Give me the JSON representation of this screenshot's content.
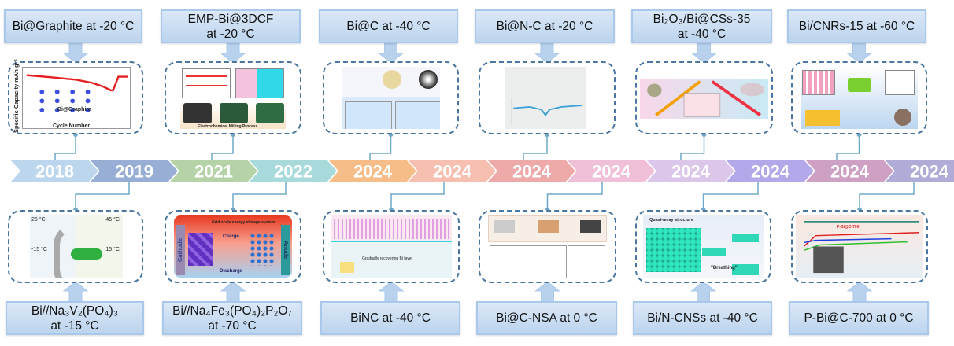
{
  "timeline": {
    "segments": [
      {
        "year": "2018",
        "color": "#bcd6ee"
      },
      {
        "year": "2019",
        "color": "#98aed4"
      },
      {
        "year": "2021",
        "color": "#b5d3a6"
      },
      {
        "year": "2022",
        "color": "#a8dadc"
      },
      {
        "year": "2024",
        "color": "#f6bd88"
      },
      {
        "year": "2024",
        "color": "#f6bfb0"
      },
      {
        "year": "2024",
        "color": "#eea9a9"
      },
      {
        "year": "2024",
        "color": "#f0c0d8"
      },
      {
        "year": "2024",
        "color": "#dcc6ea"
      },
      {
        "year": "2024",
        "color": "#b3a9ea"
      },
      {
        "year": "2024",
        "color": "#cda0c4"
      },
      {
        "year": "2024",
        "color": "#b0acd8"
      }
    ]
  },
  "top": [
    {
      "line1": "Bi@Graphite at -20 °C",
      "line2": ""
    },
    {
      "line1": "EMP-Bi@3DCF",
      "line2": "at -20 °C"
    },
    {
      "line1": "Bi@C at -40 °C",
      "line2": ""
    },
    {
      "line1": "Bi@N-C at -20 °C",
      "line2": ""
    },
    {
      "line1": "Bi₂O₃/Bi@CSs-35",
      "line2": "at -40 °C"
    },
    {
      "line1": "Bi/CNRs-15 at -60 °C",
      "line2": ""
    }
  ],
  "bottom": [
    {
      "line1": "Bi//Na₃V₂(PO₄)₃",
      "line2": "at -15 °C"
    },
    {
      "line1": "Bi//Na₄Fe₃(PO₄)₂P₂O₇",
      "line2": "at -70 °C"
    },
    {
      "line1": "BiNC at -40 °C",
      "line2": ""
    },
    {
      "line1": "Bi@C-NSA at 0 °C",
      "line2": ""
    },
    {
      "line1": "Bi/N-CNSs at -40 °C",
      "line2": ""
    },
    {
      "line1": "P-Bi@C-700 at 0 °C",
      "line2": ""
    }
  ],
  "figure_text": {
    "graphite_title": "Bi@Graphite",
    "graphite_xlabel": "Cycle Number",
    "graphite_ylabel": "Specific Capacity mAh g⁻¹",
    "emp_caption": "Electrochemical Milling Process",
    "nvp_temps": [
      "25 °C",
      "45 °C",
      "-15 °C",
      "15 °C"
    ],
    "nfpp_title": "Grid-scale energy storage system",
    "nfpp_charge": "Charge",
    "nfpp_discharge": "Discharge",
    "nfpp_cathode": "Cathode",
    "nfpp_anode": "Anode",
    "binc_caption": "Gradually recovering Bi layer",
    "cnss_title": "Quasi-array structure",
    "cnss_breathing": "\"Breathing\"",
    "pbic_series": "P-Bi@C-700"
  },
  "colors": {
    "label_fill": "#c8dcf2",
    "frame_border": "#4a76a0",
    "connector": "#6fa8c8",
    "arrow": "#b8d2ee"
  }
}
